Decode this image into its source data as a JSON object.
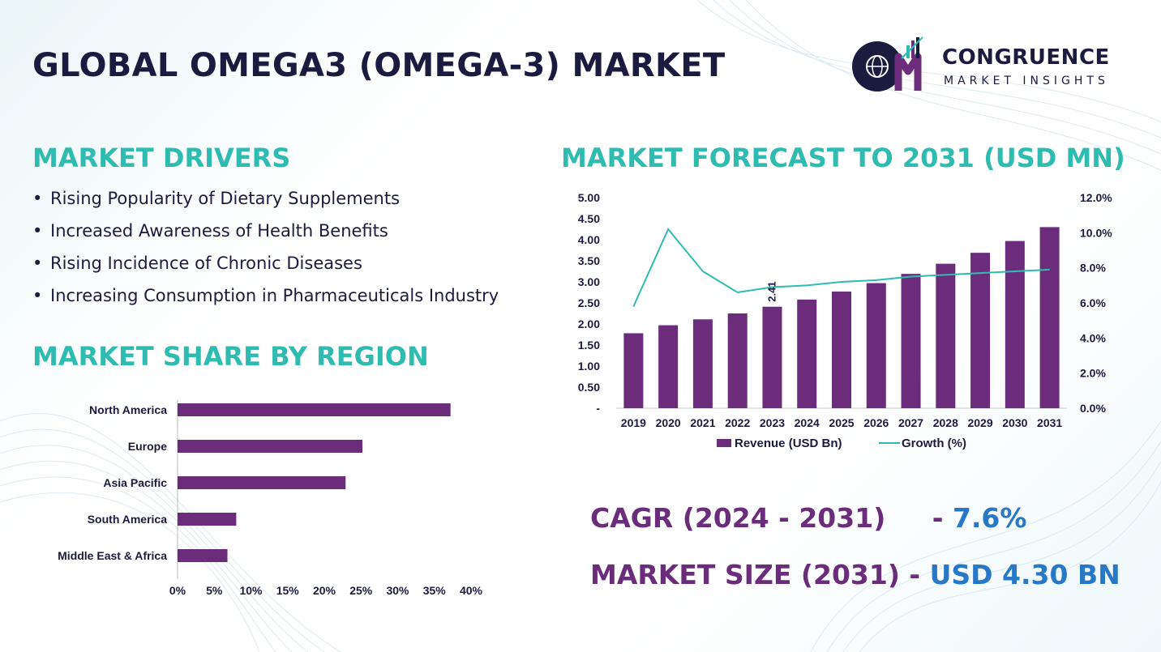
{
  "title": "GLOBAL OMEGA3 (OMEGA-3) MARKET",
  "logo": {
    "line1": "CONGRUENCE",
    "line2": "MARKET INSIGHTS",
    "monogram": "CM",
    "icon": "globe-bar-chart-logo"
  },
  "drivers": {
    "heading": "MARKET DRIVERS",
    "items": [
      "Rising Popularity of Dietary Supplements",
      "Increased Awareness of Health Benefits",
      "Rising Incidence of Chronic Diseases",
      "Increasing Consumption in Pharmaceuticals Industry"
    ]
  },
  "region": {
    "heading": "MARKET SHARE BY REGION"
  },
  "forecast": {
    "heading": "MARKET FORECAST TO 2031 (USD MN)"
  },
  "stats": {
    "cagr_label": "CAGR (2024 - 2031)",
    "cagr_sep": " - ",
    "cagr_value": "7.6%",
    "size_label": "MARKET SIZE (2031)",
    "size_sep": " - ",
    "size_value": "USD 4.30 BN"
  },
  "colors": {
    "navy": "#1b1b3f",
    "teal": "#2fbcb0",
    "purple": "#6b2d7b",
    "blue": "#2878c8",
    "bar": "#6b2d7b",
    "line": "#2fbcb0"
  },
  "chart_data": [
    {
      "type": "bar",
      "orientation": "horizontal",
      "categories": [
        "North America",
        "Europe",
        "Asia Pacific",
        "South America",
        "Middle East & Africa"
      ],
      "values": [
        37.2,
        25.2,
        22.9,
        8.0,
        6.8
      ],
      "xlim": [
        0,
        40
      ],
      "xticks": [
        "0%",
        "5%",
        "10%",
        "15%",
        "20%",
        "25%",
        "30%",
        "35%",
        "40%"
      ],
      "grid": false
    },
    {
      "type": "bar",
      "categories": [
        "2019",
        "2020",
        "2021",
        "2022",
        "2023",
        "2024",
        "2025",
        "2026",
        "2027",
        "2028",
        "2029",
        "2030",
        "2031"
      ],
      "series": [
        {
          "name": "Revenue (USD Bn)",
          "type": "bar",
          "axis": "left",
          "values": [
            1.78,
            1.97,
            2.11,
            2.25,
            2.41,
            2.58,
            2.77,
            2.97,
            3.19,
            3.43,
            3.69,
            3.97,
            4.3
          ]
        },
        {
          "name": "Growth (%)",
          "type": "line",
          "axis": "right",
          "values": [
            5.8,
            10.2,
            7.8,
            6.6,
            6.9,
            7.0,
            7.2,
            7.3,
            7.5,
            7.6,
            7.7,
            7.8,
            7.9
          ]
        }
      ],
      "data_labels": [
        {
          "index": 4,
          "text": "2.41"
        }
      ],
      "ylim_left": [
        0,
        5
      ],
      "yticks_left": [
        "-",
        "0.50",
        "1.00",
        "1.50",
        "2.00",
        "2.50",
        "3.00",
        "3.50",
        "4.00",
        "4.50",
        "5.00"
      ],
      "ylim_right": [
        0,
        12
      ],
      "yticks_right": [
        "0.0%",
        "2.0%",
        "4.0%",
        "6.0%",
        "8.0%",
        "10.0%",
        "12.0%"
      ],
      "legend": "bottom",
      "grid": false
    }
  ]
}
